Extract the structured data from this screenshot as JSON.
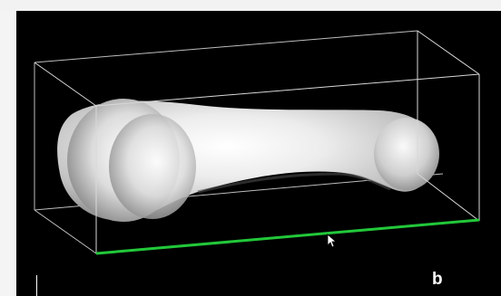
{
  "viewer": {
    "panel_label": "b",
    "background_color": "#000000",
    "bounding_box_color": "#d8d8d8",
    "axis_color": "#22c83a",
    "model_color": "#e6e6e6",
    "model_name": "bone-model"
  },
  "icons": {
    "cursor": "mouse-pointer-icon"
  }
}
